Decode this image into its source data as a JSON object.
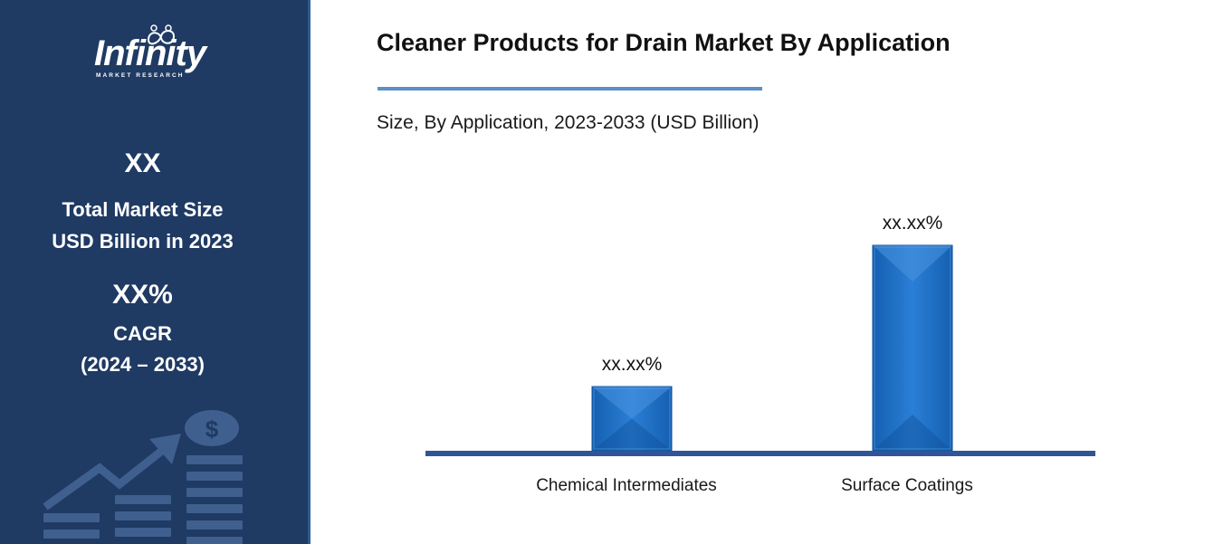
{
  "sidebar": {
    "logo": {
      "name": "Infinity",
      "tagline": "MARKET RESEARCH"
    },
    "stat1": {
      "value": "XX",
      "line1": "Total Market Size",
      "line2": "USD Billion in 2023"
    },
    "stat2": {
      "value": "XX%",
      "line1": "CAGR",
      "line2": "(2024 – 2033)"
    },
    "graphic_icon": "growth-chart-dollar-icon",
    "colors": {
      "background": "#1f3a63",
      "graphic": "#3f5f8f"
    }
  },
  "chart": {
    "title": "Cleaner Products for Drain Market By Application",
    "subtitle": "Size, By Application, 2023-2033 (USD Billion)"
  },
  "chart_data": {
    "type": "bar",
    "categories": [
      "Chemical Intermediates",
      "Surface Coatings"
    ],
    "values": [
      1,
      3.2
    ],
    "data_labels": [
      "xx.xx%",
      "xx.xx%"
    ],
    "title": "Cleaner Products for Drain Market By Application",
    "subtitle": "Size, By Application, 2023-2033 (USD Billion)",
    "xlabel": "",
    "ylabel": "",
    "ylim": [
      0,
      3.2
    ],
    "grid": false,
    "legend": "none",
    "colors": {
      "bar": "#1e6fc5",
      "bar_light": "#4a93e0",
      "bar_dark": "#0f4f9a",
      "axis": "#2f5597"
    }
  }
}
